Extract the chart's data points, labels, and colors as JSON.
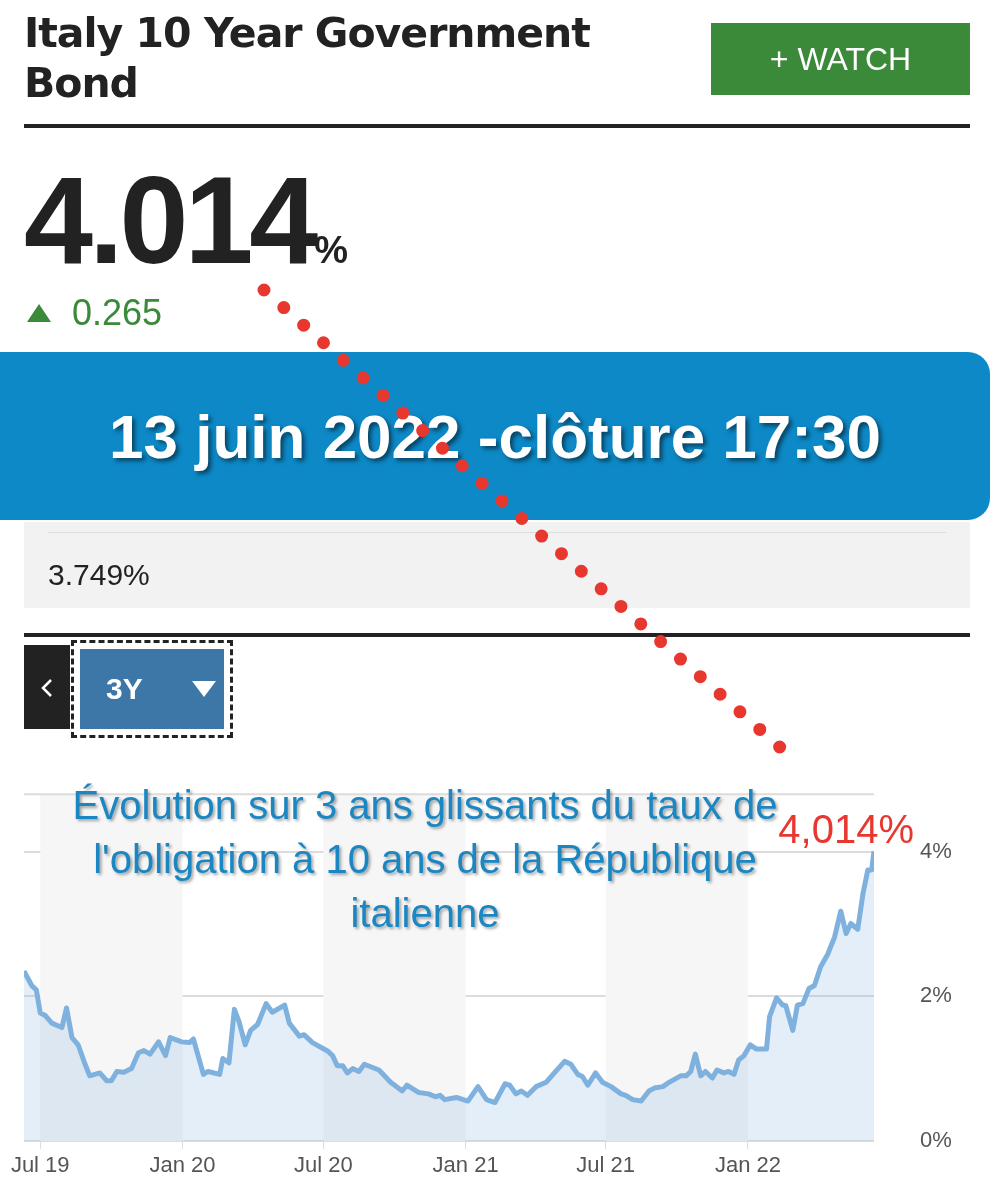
{
  "chart_data": {
    "type": "area",
    "title": "Italy 10 Year Government Bond",
    "annotations": [
      "4.014%",
      "0.265",
      "13 juin 2022 -clôture 17:30",
      "3.749%",
      "3Y",
      "+ WATCH",
      "Évolution sur 3 ans glissants du taux de l'obligation à 10 ans de la République italienne",
      {
        "text": "4,014%",
        "x": "2022-06-13",
        "y": 4.01
      }
    ],
    "x": [
      "2019-06-10",
      "2019-06-20",
      "2019-06-26",
      "2019-07-01",
      "2019-07-07",
      "2019-07-16",
      "2019-07-29",
      "2019-08-04",
      "2019-08-11",
      "2019-08-19",
      "2019-08-28",
      "2019-09-03",
      "2019-09-16",
      "2019-09-25",
      "2019-10-01",
      "2019-10-08",
      "2019-10-17",
      "2019-10-27",
      "2019-11-05",
      "2019-11-12",
      "2019-11-20",
      "2019-12-01",
      "2019-12-10",
      "2019-12-16",
      "2019-12-31",
      "2020-01-10",
      "2020-01-15",
      "2020-01-28",
      "2020-02-03",
      "2020-02-18",
      "2020-02-22",
      "2020-03-01",
      "2020-03-08",
      "2020-03-14",
      "2020-03-22",
      "2020-03-29",
      "2020-04-07",
      "2020-04-18",
      "2020-04-26",
      "2020-05-12",
      "2020-05-18",
      "2020-05-31",
      "2020-06-06",
      "2020-06-17",
      "2020-07-07",
      "2020-07-13",
      "2020-07-19",
      "2020-07-26",
      "2020-08-01",
      "2020-08-08",
      "2020-08-16",
      "2020-08-23",
      "2020-09-11",
      "2020-09-26",
      "2020-10-11",
      "2020-10-17",
      "2020-11-01",
      "2020-11-14",
      "2020-11-23",
      "2020-11-29",
      "2020-12-05",
      "2020-12-20",
      "2021-01-04",
      "2021-01-17",
      "2021-01-28",
      "2021-02-08",
      "2021-02-21",
      "2021-02-27",
      "2021-03-07",
      "2021-03-14",
      "2021-03-22",
      "2021-04-02",
      "2021-04-15",
      "2021-04-24",
      "2021-05-09",
      "2021-05-17",
      "2021-05-26",
      "2021-06-01",
      "2021-06-08",
      "2021-06-18",
      "2021-06-27",
      "2021-07-08",
      "2021-07-21",
      "2021-07-27",
      "2021-08-05",
      "2021-08-16",
      "2021-08-26",
      "2021-09-02",
      "2021-09-13",
      "2021-09-21",
      "2021-10-06",
      "2021-10-13",
      "2021-10-19",
      "2021-10-25",
      "2021-11-01",
      "2021-11-07",
      "2021-11-16",
      "2021-11-22",
      "2021-12-01",
      "2021-12-07",
      "2021-12-14",
      "2021-12-20",
      "2021-12-27",
      "2022-01-04",
      "2022-01-12",
      "2022-01-25",
      "2022-01-29",
      "2022-02-07",
      "2022-02-15",
      "2022-02-19",
      "2022-02-28",
      "2022-03-06",
      "2022-03-13",
      "2022-03-21",
      "2022-03-28",
      "2022-04-05",
      "2022-04-14",
      "2022-04-23",
      "2022-05-01",
      "2022-05-08",
      "2022-05-14",
      "2022-05-23",
      "2022-05-30",
      "2022-06-05",
      "2022-06-10",
      "2022-06-13"
    ],
    "series": [
      {
        "color": "#7fb1de",
        "values": [
          2.35,
          2.15,
          2.09,
          1.77,
          1.74,
          1.63,
          1.57,
          1.84,
          1.43,
          1.33,
          1.06,
          0.9,
          0.94,
          0.83,
          0.83,
          0.96,
          0.95,
          1.0,
          1.22,
          1.25,
          1.2,
          1.37,
          1.18,
          1.43,
          1.37,
          1.36,
          1.41,
          0.92,
          0.96,
          0.92,
          1.14,
          1.08,
          1.82,
          1.65,
          1.33,
          1.53,
          1.61,
          1.9,
          1.78,
          1.88,
          1.63,
          1.45,
          1.47,
          1.36,
          1.24,
          1.18,
          1.04,
          1.04,
          0.94,
          1.0,
          0.96,
          1.06,
          0.98,
          0.81,
          0.69,
          0.77,
          0.67,
          0.65,
          0.61,
          0.63,
          0.57,
          0.6,
          0.55,
          0.75,
          0.57,
          0.53,
          0.79,
          0.77,
          0.65,
          0.69,
          0.63,
          0.75,
          0.81,
          0.92,
          1.1,
          1.06,
          0.92,
          0.89,
          0.77,
          0.94,
          0.81,
          0.75,
          0.65,
          0.63,
          0.57,
          0.55,
          0.69,
          0.73,
          0.75,
          0.81,
          0.9,
          0.9,
          0.96,
          1.2,
          0.9,
          0.96,
          0.87,
          0.98,
          0.94,
          0.96,
          0.92,
          1.12,
          1.18,
          1.33,
          1.27,
          1.27,
          1.72,
          1.98,
          1.88,
          1.87,
          1.53,
          1.88,
          1.9,
          2.11,
          2.15,
          2.41,
          2.58,
          2.82,
          3.18,
          2.87,
          3.01,
          2.93,
          3.44,
          3.75,
          3.75,
          4.01
        ]
      }
    ],
    "xlim": [
      "2019-06-10",
      "2022-06-13"
    ],
    "xticks": [
      {
        "value": "2019-07-01",
        "label": "Jul 19"
      },
      {
        "value": "2020-01-01",
        "label": "Jan 20"
      },
      {
        "value": "2020-07-01",
        "label": "Jul 20"
      },
      {
        "value": "2021-01-01",
        "label": "Jan 21"
      },
      {
        "value": "2021-07-01",
        "label": "Jul 21"
      },
      {
        "value": "2022-01-01",
        "label": "Jan 22"
      }
    ],
    "ylim": [
      0,
      4.8
    ],
    "yticks": [
      {
        "value": 0,
        "label": "0%"
      },
      {
        "value": 2,
        "label": "2%"
      },
      {
        "value": 4,
        "label": "4%"
      }
    ],
    "bands": [
      {
        "axis": "x",
        "from": "2019-07-01",
        "to": "2020-01-01",
        "color": "#f6f6f6"
      },
      {
        "axis": "x",
        "from": "2020-07-01",
        "to": "2021-01-01",
        "color": "#f6f6f6"
      },
      {
        "axis": "x",
        "from": "2021-07-01",
        "to": "2022-01-01",
        "color": "#f6f6f6"
      }
    ],
    "grid": "y",
    "legend": false,
    "marker": "none",
    "line_style": "solid"
  }
}
